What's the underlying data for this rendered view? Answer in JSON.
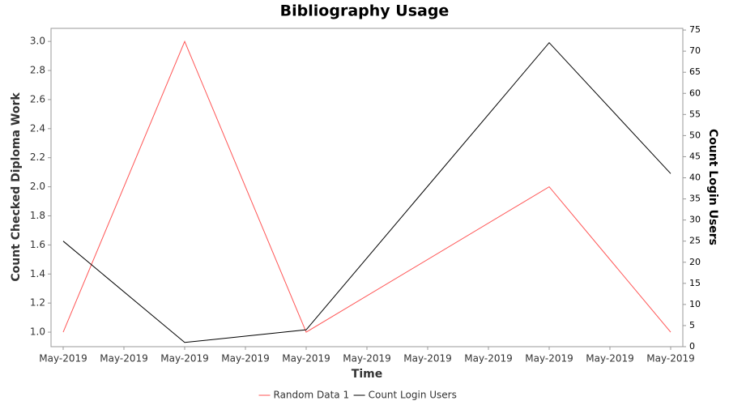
{
  "chart_data": {
    "type": "line",
    "title": "Bibliography Usage",
    "xlabel": "Time",
    "ylabel": "Count Checked Diploma Work",
    "y2label": "Count Login Users",
    "x": [
      0,
      2,
      4,
      8,
      10
    ],
    "series": [
      {
        "name": "Random Data 1",
        "color": "#ff5555",
        "values": [
          1.0,
          3.0,
          1.0,
          2.0,
          1.0
        ]
      },
      {
        "name": "Count Login Users",
        "color": "#000000",
        "axis": "y2",
        "values": [
          25,
          1,
          4,
          72,
          41
        ]
      }
    ],
    "xlim": [
      -0.2,
      10.2
    ],
    "xticks": [
      {
        "value": 0,
        "label": "May-2019"
      },
      {
        "value": 1,
        "label": "May-2019"
      },
      {
        "value": 2,
        "label": "May-2019"
      },
      {
        "value": 3,
        "label": "May-2019"
      },
      {
        "value": 4,
        "label": "May-2019"
      },
      {
        "value": 5,
        "label": "May-2019"
      },
      {
        "value": 6,
        "label": "May-2019"
      },
      {
        "value": 7,
        "label": "May-2019"
      },
      {
        "value": 8,
        "label": "May-2019"
      },
      {
        "value": 9,
        "label": "May-2019"
      },
      {
        "value": 10,
        "label": "May-2019"
      }
    ],
    "ylim": [
      0.9,
      3.09
    ],
    "yticks": [
      {
        "value": 1.0,
        "label": "1.0"
      },
      1.2,
      1.4,
      1.6,
      1.8,
      {
        "value": 2.0,
        "label": "2.0"
      },
      2.2,
      2.4,
      2.6,
      2.8,
      {
        "value": 3.0,
        "label": "3.0"
      }
    ],
    "y2lim": [
      0,
      75.4
    ],
    "y2ticks": [
      0,
      5,
      10,
      15,
      20,
      25,
      30,
      35,
      40,
      45,
      50,
      55,
      60,
      65,
      70,
      75
    ],
    "grid": false,
    "legend": "bottom"
  }
}
